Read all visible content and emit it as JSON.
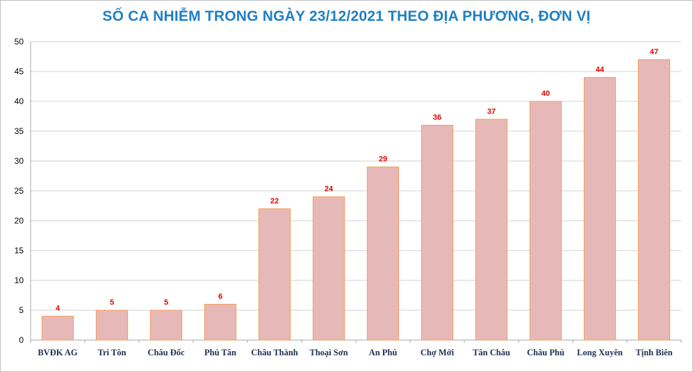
{
  "chart_data": {
    "type": "bar",
    "title": "SỐ CA NHIỄM TRONG NGÀY 23/12/2021 THEO ĐỊA PHƯƠNG, ĐƠN VỊ",
    "categories": [
      "BVĐK AG",
      "Tri Tôn",
      "Châu Đốc",
      "Phú Tân",
      "Châu Thành",
      "Thoại  Sơn",
      "An Phú",
      "Chợ Mới",
      "Tân Châu",
      "Châu Phú",
      "Long Xuyên",
      "Tịnh Biên"
    ],
    "values": [
      4,
      5,
      5,
      6,
      22,
      24,
      29,
      36,
      37,
      40,
      44,
      47
    ],
    "ylim": [
      0,
      50
    ],
    "yticks": [
      0,
      5,
      10,
      15,
      20,
      25,
      30,
      35,
      40,
      45,
      50
    ],
    "grid": true,
    "legend": "none",
    "colors": {
      "bar_fill": "#e6b9b8",
      "bar_stroke": "#f59d56",
      "title": "#1f7fc4",
      "data_label": "#e00000",
      "grid": "#d0d0d0",
      "axis": "#a6a6a6"
    }
  }
}
